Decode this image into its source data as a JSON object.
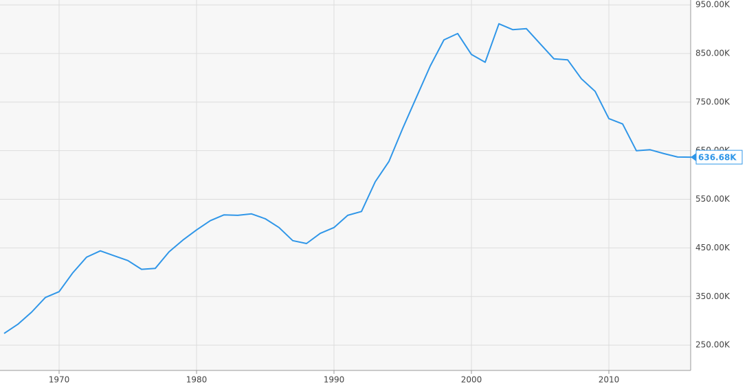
{
  "chart_data": {
    "type": "line",
    "x": [
      1966,
      1967,
      1968,
      1969,
      1970,
      1971,
      1972,
      1973,
      1974,
      1975,
      1976,
      1977,
      1978,
      1979,
      1980,
      1981,
      1982,
      1983,
      1984,
      1985,
      1986,
      1987,
      1988,
      1989,
      1990,
      1991,
      1992,
      1993,
      1994,
      1995,
      1996,
      1997,
      1998,
      1999,
      2000,
      2001,
      2002,
      2003,
      2004,
      2005,
      2006,
      2007,
      2008,
      2009,
      2010,
      2011,
      2012,
      2013,
      2014,
      2015,
      2016
    ],
    "series": [
      {
        "color": "#2f96e8",
        "values": [
          274,
          293,
          318,
          348,
          360,
          399,
          431,
          444,
          434,
          424,
          406,
          408,
          442,
          466,
          487,
          506,
          518,
          517,
          520,
          510,
          492,
          465,
          459,
          480,
          492,
          517,
          525,
          586,
          628,
          696,
          760,
          824,
          878,
          891,
          848,
          832,
          911,
          899,
          901,
          870,
          839,
          837,
          798,
          772,
          716,
          705,
          650,
          652,
          644,
          637,
          636.68
        ],
        "last_label": "636.68K"
      }
    ],
    "xlim": [
      1965.7,
      2015.95
    ],
    "xticks": [
      1970,
      1980,
      1990,
      2000,
      2010
    ],
    "ylim": [
      198,
      960
    ],
    "yticks": [
      {
        "value": 250,
        "label": "250.00K"
      },
      {
        "value": 350,
        "label": "350.00K"
      },
      {
        "value": 450,
        "label": "450.00K"
      },
      {
        "value": 550,
        "label": "550.00K"
      },
      {
        "value": 650,
        "label": "650.00K"
      },
      {
        "value": 750,
        "label": "750.00K"
      },
      {
        "value": 850,
        "label": "850.00K"
      },
      {
        "value": 950,
        "label": "950.00K"
      }
    ],
    "grid": true
  }
}
